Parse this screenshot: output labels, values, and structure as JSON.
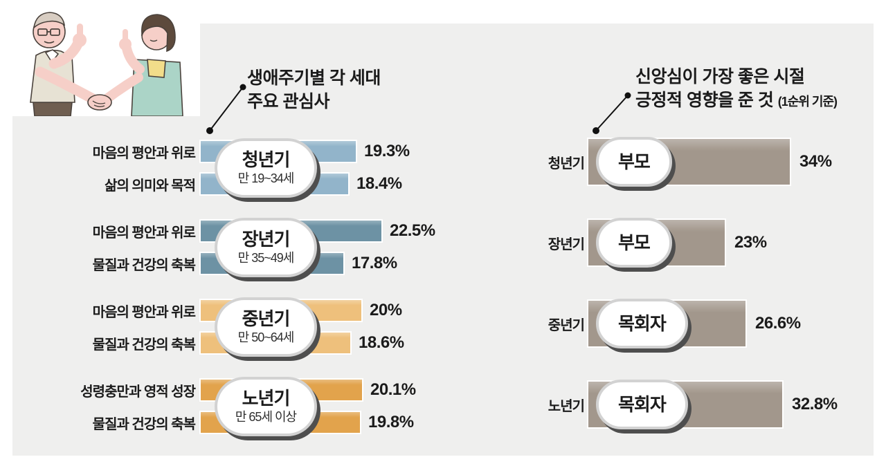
{
  "page": {
    "panel_bg": "#efefee"
  },
  "left_chart": {
    "title_line1": "생애주기별 각 세대",
    "title_line2": "주요 관심사",
    "groups": [
      {
        "stage": "청년기",
        "age": "만 19~34세",
        "color": "#92b4ca",
        "bars": [
          {
            "label": "마음의 평안과 위로",
            "value": 19.3,
            "display": "19.3%"
          },
          {
            "label": "삶의 의미와 목적",
            "value": 18.4,
            "display": "18.4%"
          }
        ]
      },
      {
        "stage": "장년기",
        "age": "만 35~49세",
        "color": "#6d92a4",
        "bars": [
          {
            "label": "마음의 평안과 위로",
            "value": 22.5,
            "display": "22.5%"
          },
          {
            "label": "물질과 건강의 축복",
            "value": 17.8,
            "display": "17.8%"
          }
        ]
      },
      {
        "stage": "중년기",
        "age": "만 50~64세",
        "color": "#eec07c",
        "bars": [
          {
            "label": "마음의 평안과 위로",
            "value": 20,
            "display": "20%"
          },
          {
            "label": "물질과 건강의 축복",
            "value": 18.6,
            "display": "18.6%"
          }
        ]
      },
      {
        "stage": "노년기",
        "age": "만 65세 이상",
        "color": "#e2a34c",
        "bars": [
          {
            "label": "성령충만과 영적 성장",
            "value": 20.1,
            "display": "20.1%"
          },
          {
            "label": "물질과 건강의 축복",
            "value": 19.8,
            "display": "19.8%"
          }
        ]
      }
    ]
  },
  "right_chart": {
    "title_line1": "신앙심이 가장 좋은 시절",
    "title_line2": "긍정적 영향을 준 것",
    "title_note": "(1순위 기준)",
    "bar_color": "#a2978c",
    "rows": [
      {
        "stage": "청년기",
        "influence": "부모",
        "value": 34,
        "display": "34%"
      },
      {
        "stage": "장년기",
        "influence": "부모",
        "value": 23,
        "display": "23%"
      },
      {
        "stage": "중년기",
        "influence": "목회자",
        "value": 26.6,
        "display": "26.6%"
      },
      {
        "stage": "노년기",
        "influence": "목회자",
        "value": 32.8,
        "display": "32.8%"
      }
    ]
  },
  "chart_data": [
    {
      "type": "bar",
      "title": "생애주기별 각 세대 주요 관심사",
      "orientation": "horizontal",
      "unit": "%",
      "series": [
        {
          "group": "청년기 (만 19~34세)",
          "points": [
            {
              "label": "마음의 평안과 위로",
              "value": 19.3
            },
            {
              "label": "삶의 의미와 목적",
              "value": 18.4
            }
          ]
        },
        {
          "group": "장년기 (만 35~49세)",
          "points": [
            {
              "label": "마음의 평안과 위로",
              "value": 22.5
            },
            {
              "label": "물질과 건강의 축복",
              "value": 17.8
            }
          ]
        },
        {
          "group": "중년기 (만 50~64세)",
          "points": [
            {
              "label": "마음의 평안과 위로",
              "value": 20
            },
            {
              "label": "물질과 건강의 축복",
              "value": 18.6
            }
          ]
        },
        {
          "group": "노년기 (만 65세 이상)",
          "points": [
            {
              "label": "성령충만과 영적 성장",
              "value": 20.1
            },
            {
              "label": "물질과 건강의 축복",
              "value": 19.8
            }
          ]
        }
      ]
    },
    {
      "type": "bar",
      "title": "신앙심이 가장 좋은 시절 긍정적 영향을 준 것 (1순위 기준)",
      "orientation": "horizontal",
      "unit": "%",
      "categories": [
        "청년기",
        "장년기",
        "중년기",
        "노년기"
      ],
      "labels": [
        "부모",
        "부모",
        "목회자",
        "목회자"
      ],
      "values": [
        34,
        23,
        26.6,
        32.8
      ]
    }
  ]
}
